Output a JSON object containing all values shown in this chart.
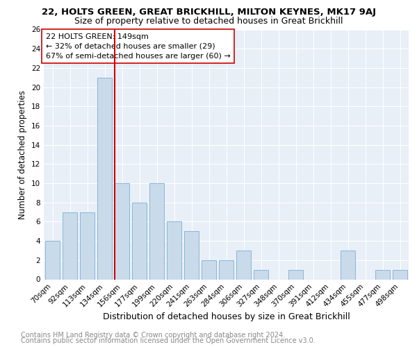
{
  "title1": "22, HOLTS GREEN, GREAT BRICKHILL, MILTON KEYNES, MK17 9AJ",
  "title2": "Size of property relative to detached houses in Great Brickhill",
  "xlabel": "Distribution of detached houses by size in Great Brickhill",
  "ylabel": "Number of detached properties",
  "categories": [
    "70sqm",
    "92sqm",
    "113sqm",
    "134sqm",
    "156sqm",
    "177sqm",
    "199sqm",
    "220sqm",
    "241sqm",
    "263sqm",
    "284sqm",
    "306sqm",
    "327sqm",
    "348sqm",
    "370sqm",
    "391sqm",
    "412sqm",
    "434sqm",
    "455sqm",
    "477sqm",
    "498sqm"
  ],
  "values": [
    4,
    7,
    7,
    21,
    10,
    8,
    10,
    6,
    5,
    2,
    2,
    3,
    1,
    0,
    1,
    0,
    0,
    3,
    0,
    1,
    1
  ],
  "bar_color": "#c9daea",
  "bar_edge_color": "#7bafd4",
  "vline_color": "#cc0000",
  "vline_pos": 3.575,
  "annotation_title": "22 HOLTS GREEN: 149sqm",
  "annotation_line1": "← 32% of detached houses are smaller (29)",
  "annotation_line2": "67% of semi-detached houses are larger (60) →",
  "annotation_box_color": "#ffffff",
  "annotation_box_edge": "#cc0000",
  "ylim": [
    0,
    26
  ],
  "yticks": [
    0,
    2,
    4,
    6,
    8,
    10,
    12,
    14,
    16,
    18,
    20,
    22,
    24,
    26
  ],
  "footnote1": "Contains HM Land Registry data © Crown copyright and database right 2024.",
  "footnote2": "Contains public sector information licensed under the Open Government Licence v3.0.",
  "bg_color": "#e8eff7",
  "title1_fontsize": 9.5,
  "title2_fontsize": 9,
  "xlabel_fontsize": 9,
  "ylabel_fontsize": 8.5,
  "tick_fontsize": 7.5,
  "annot_fontsize": 8,
  "footnote_fontsize": 7
}
